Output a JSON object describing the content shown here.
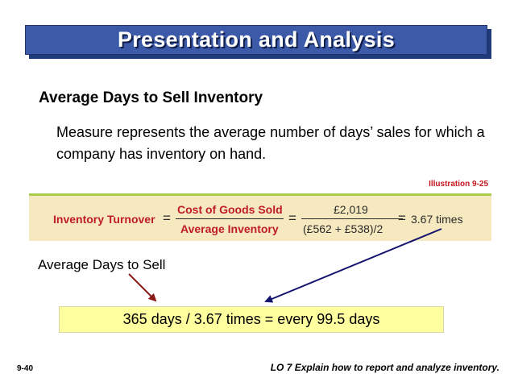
{
  "slide": {
    "title": "Presentation and Analysis",
    "subheading": "Average Days to Sell Inventory",
    "description": "Measure represents the average number of days’ sales for which a company has inventory on hand.",
    "illustration_label": "Illustration 9-25"
  },
  "formula": {
    "name": "Inventory Turnover",
    "equals": "=",
    "numerator_label": "Cost of Goods Sold",
    "denominator_label": "Average Inventory",
    "numerator_value": "£2,019",
    "denominator_value": "(£562 + £538)/2",
    "result": "3.67 times"
  },
  "days_label": "Average Days to Sell",
  "calculation": "365 days / 3.67 times = every 99.5 days",
  "footer": {
    "slide_number": "9-40",
    "learning_objective": "LO 7  Explain how to report and analyze inventory."
  },
  "colors": {
    "title_bar": "#3c5aa8",
    "formula_background": "#f6e9bf",
    "formula_accent": "#c01c28",
    "result_box": "#ffffa0",
    "arrow_left": "#8b1a1a",
    "arrow_right": "#14146e"
  }
}
